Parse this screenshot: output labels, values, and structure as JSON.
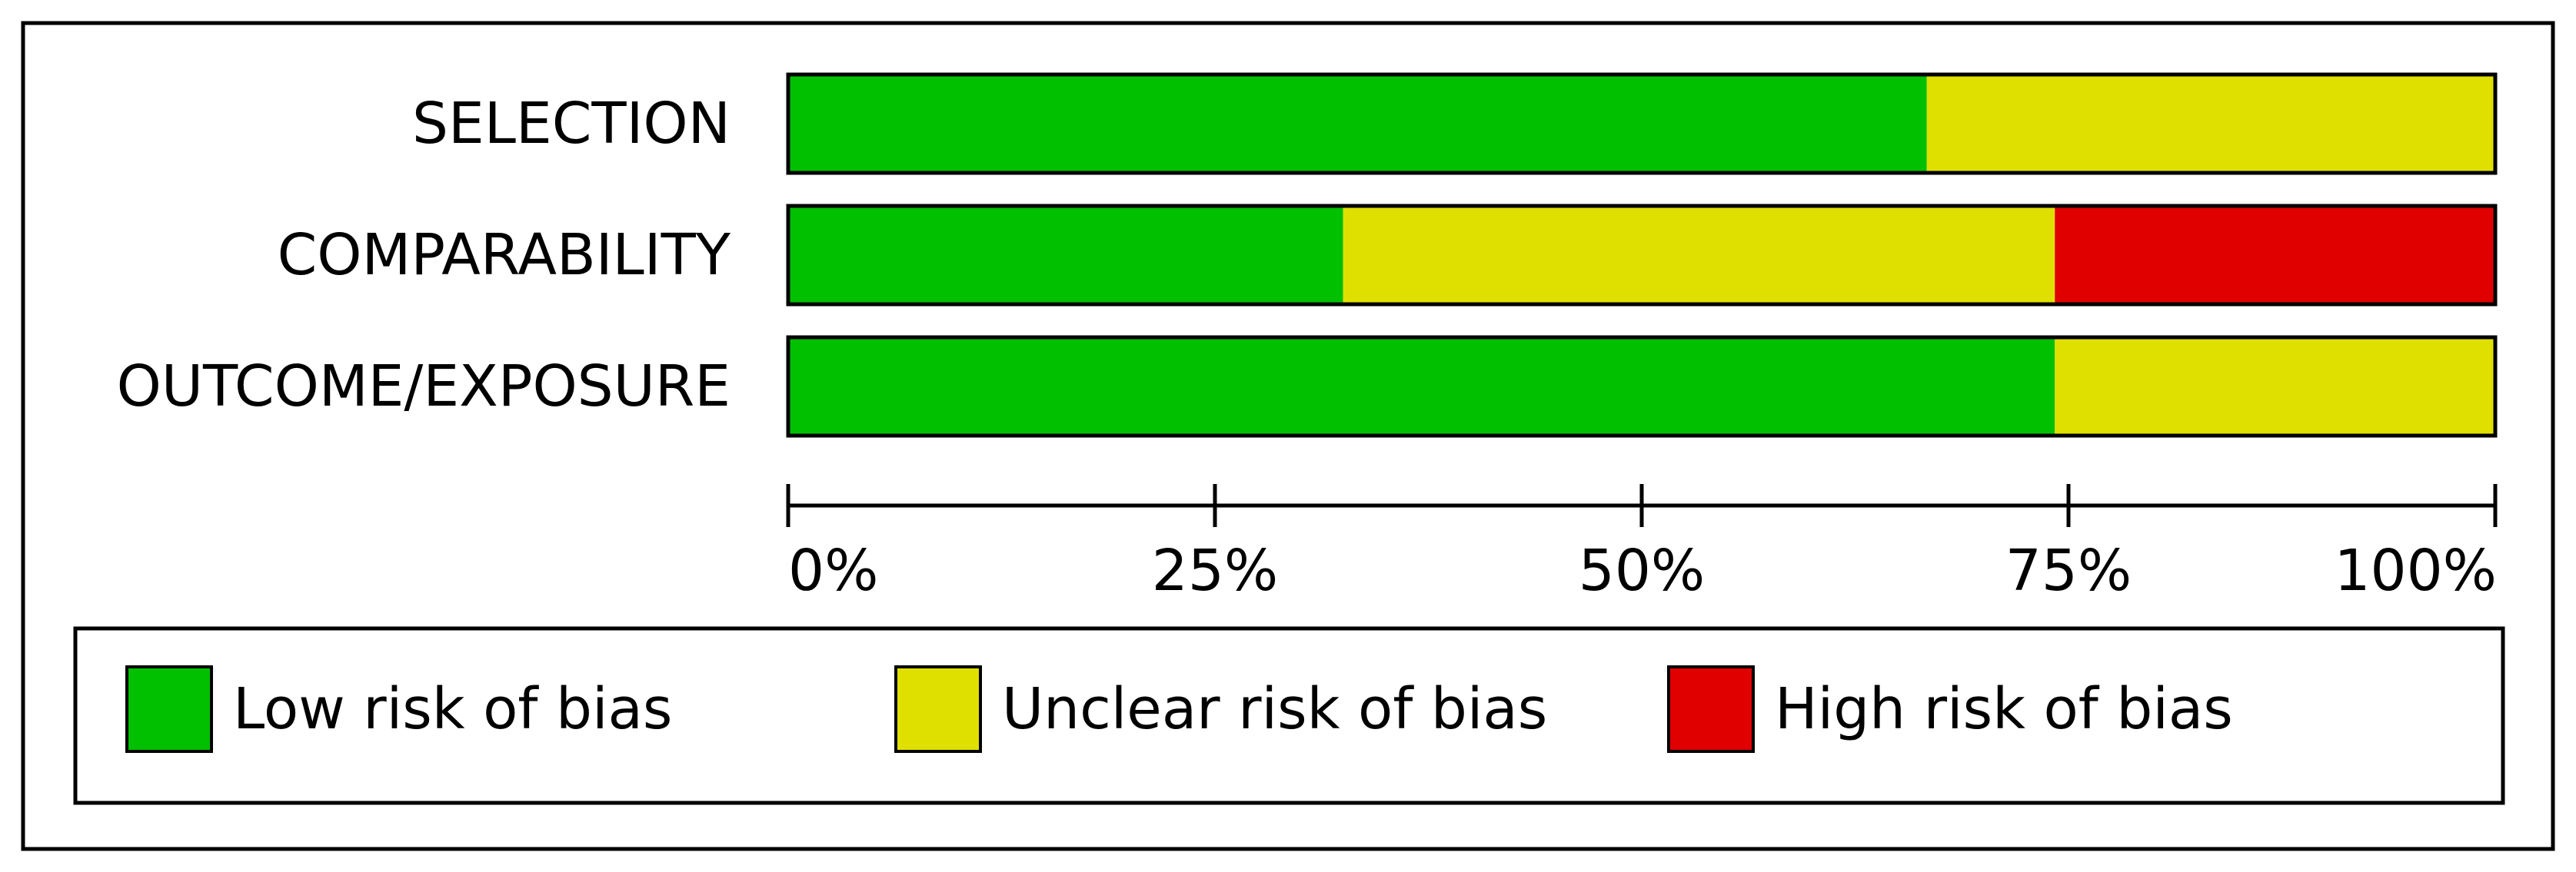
{
  "chart_data": {
    "type": "bar",
    "stacked": true,
    "orientation": "horizontal",
    "title": "",
    "xlabel": "",
    "ylabel": "",
    "xlim": [
      0,
      100
    ],
    "x_ticks": [
      "0%",
      "25%",
      "50%",
      "75%",
      "100%"
    ],
    "x_tick_values": [
      0,
      25,
      50,
      75,
      100
    ],
    "categories": [
      "SELECTION",
      "COMPARABILITY",
      "OUTCOME/EXPOSURE"
    ],
    "series": [
      {
        "name": "Low risk of bias",
        "color": "#00c000",
        "values": [
          66.7,
          32.5,
          74.2
        ]
      },
      {
        "name": "Unclear risk of bias",
        "color": "#e0e000",
        "values": [
          33.3,
          41.7,
          25.8
        ]
      },
      {
        "name": "High risk of bias",
        "color": "#e00000",
        "values": [
          0,
          25.8,
          0
        ]
      }
    ],
    "legend_position": "bottom",
    "grid": false
  }
}
